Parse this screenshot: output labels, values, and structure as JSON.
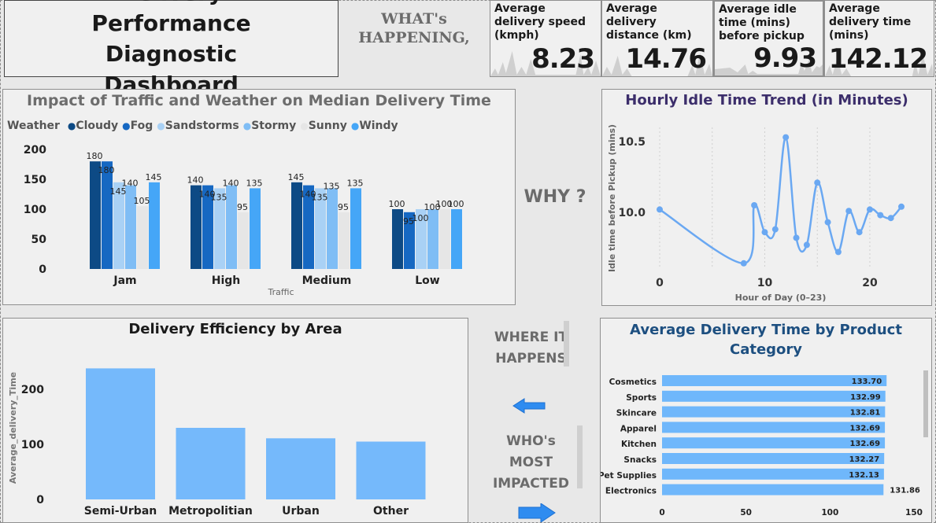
{
  "header": {
    "title": "Delivery Performance Diagnostic Dashboard",
    "what_label": "WHAT's HAPPENING,",
    "why_label": "WHY ?",
    "where_label": "WHERE IT HAPPENS",
    "who_label": "WHO's MOST IMPACTED"
  },
  "kpis": [
    {
      "label": "Average delivery speed (kmph)",
      "value": "8.23"
    },
    {
      "label": "Average delivery distance (km)",
      "value": "14.76"
    },
    {
      "label": "Average idle time (mins) before pickup",
      "value": "9.93"
    },
    {
      "label": "Average delivery time (mins)",
      "value": "142.12"
    }
  ],
  "colors": {
    "cloudy": "#0d4a85",
    "fog": "#1668c2",
    "sandstorms": "#a9d1f5",
    "stormy": "#7fbdf5",
    "sunny": "#e6e6e6",
    "windy": "#45a6f7",
    "line": "#6aa8f2",
    "bar": "#6fb7fb",
    "area_bar": "#75b9fb"
  },
  "chart_data": [
    {
      "type": "bar",
      "title": "Impact of Traffic and Weather on Median Delivery Time",
      "legend_title": "Weather",
      "xlabel": "Traffic",
      "categories": [
        "Jam",
        "High",
        "Medium",
        "Low"
      ],
      "series": [
        {
          "name": "Cloudy",
          "values": [
            180,
            140,
            145,
            100
          ]
        },
        {
          "name": "Fog",
          "values": [
            180,
            140,
            140,
            95
          ]
        },
        {
          "name": "Sandstorms",
          "values": [
            145,
            135,
            135,
            100
          ]
        },
        {
          "name": "Stormy",
          "values": [
            140,
            140,
            135,
            100
          ]
        },
        {
          "name": "Sunny",
          "values": [
            105,
            95,
            95,
            100
          ]
        },
        {
          "name": "Windy",
          "values": [
            145,
            135,
            135,
            100
          ]
        }
      ],
      "yticks": [
        "0",
        "50",
        "100",
        "150",
        "200"
      ],
      "ylim": [
        0,
        200
      ],
      "legend_position": "top-left"
    },
    {
      "type": "line",
      "title": "Hourly Idle Time Trend (in Minutes)",
      "xlabel": "Hour of Day (0–23)",
      "ylabel": "Idle time before Pickup (mins)",
      "x": [
        0,
        8,
        9,
        10,
        11,
        12,
        13,
        14,
        15,
        16,
        17,
        18,
        19,
        20,
        21,
        22,
        23
      ],
      "y": [
        10.02,
        9.64,
        10.05,
        9.86,
        9.88,
        10.53,
        9.82,
        9.77,
        10.21,
        9.93,
        9.72,
        10.01,
        9.86,
        10.02,
        9.98,
        9.96,
        10.04
      ],
      "xticks": [
        "0",
        "10",
        "20"
      ],
      "yticks": [
        "10.0",
        "10.5"
      ],
      "xlim": [
        0,
        23
      ],
      "ylim": [
        9.6,
        10.6
      ],
      "grid": "vertical-dashed"
    },
    {
      "type": "bar",
      "title": "Delivery Efficiency by Area",
      "categories": [
        "Semi-Urban",
        "Metropolitian",
        "Urban",
        "Other"
      ],
      "values": [
        238,
        130,
        111,
        105
      ],
      "ylabel": "Average_delivery_Time",
      "yticks": [
        "0",
        "100",
        "200"
      ],
      "ylim": [
        0,
        260
      ]
    },
    {
      "type": "bar",
      "orientation": "horizontal",
      "title": "Average Delivery Time by Product Category",
      "categories": [
        "Cosmetics",
        "Sports",
        "Skincare",
        "Apparel",
        "Kitchen",
        "Snacks",
        "Pet Supplies",
        "Electronics"
      ],
      "values": [
        133.7,
        132.99,
        132.81,
        132.69,
        132.69,
        132.27,
        132.13,
        131.86
      ],
      "value_labels": [
        "133.70",
        "132.99",
        "132.81",
        "132.69",
        "132.69",
        "132.27",
        "132.13",
        "131.86"
      ],
      "xticks": [
        "0",
        "50",
        "100",
        "150"
      ],
      "xlim": [
        0,
        150
      ]
    }
  ]
}
